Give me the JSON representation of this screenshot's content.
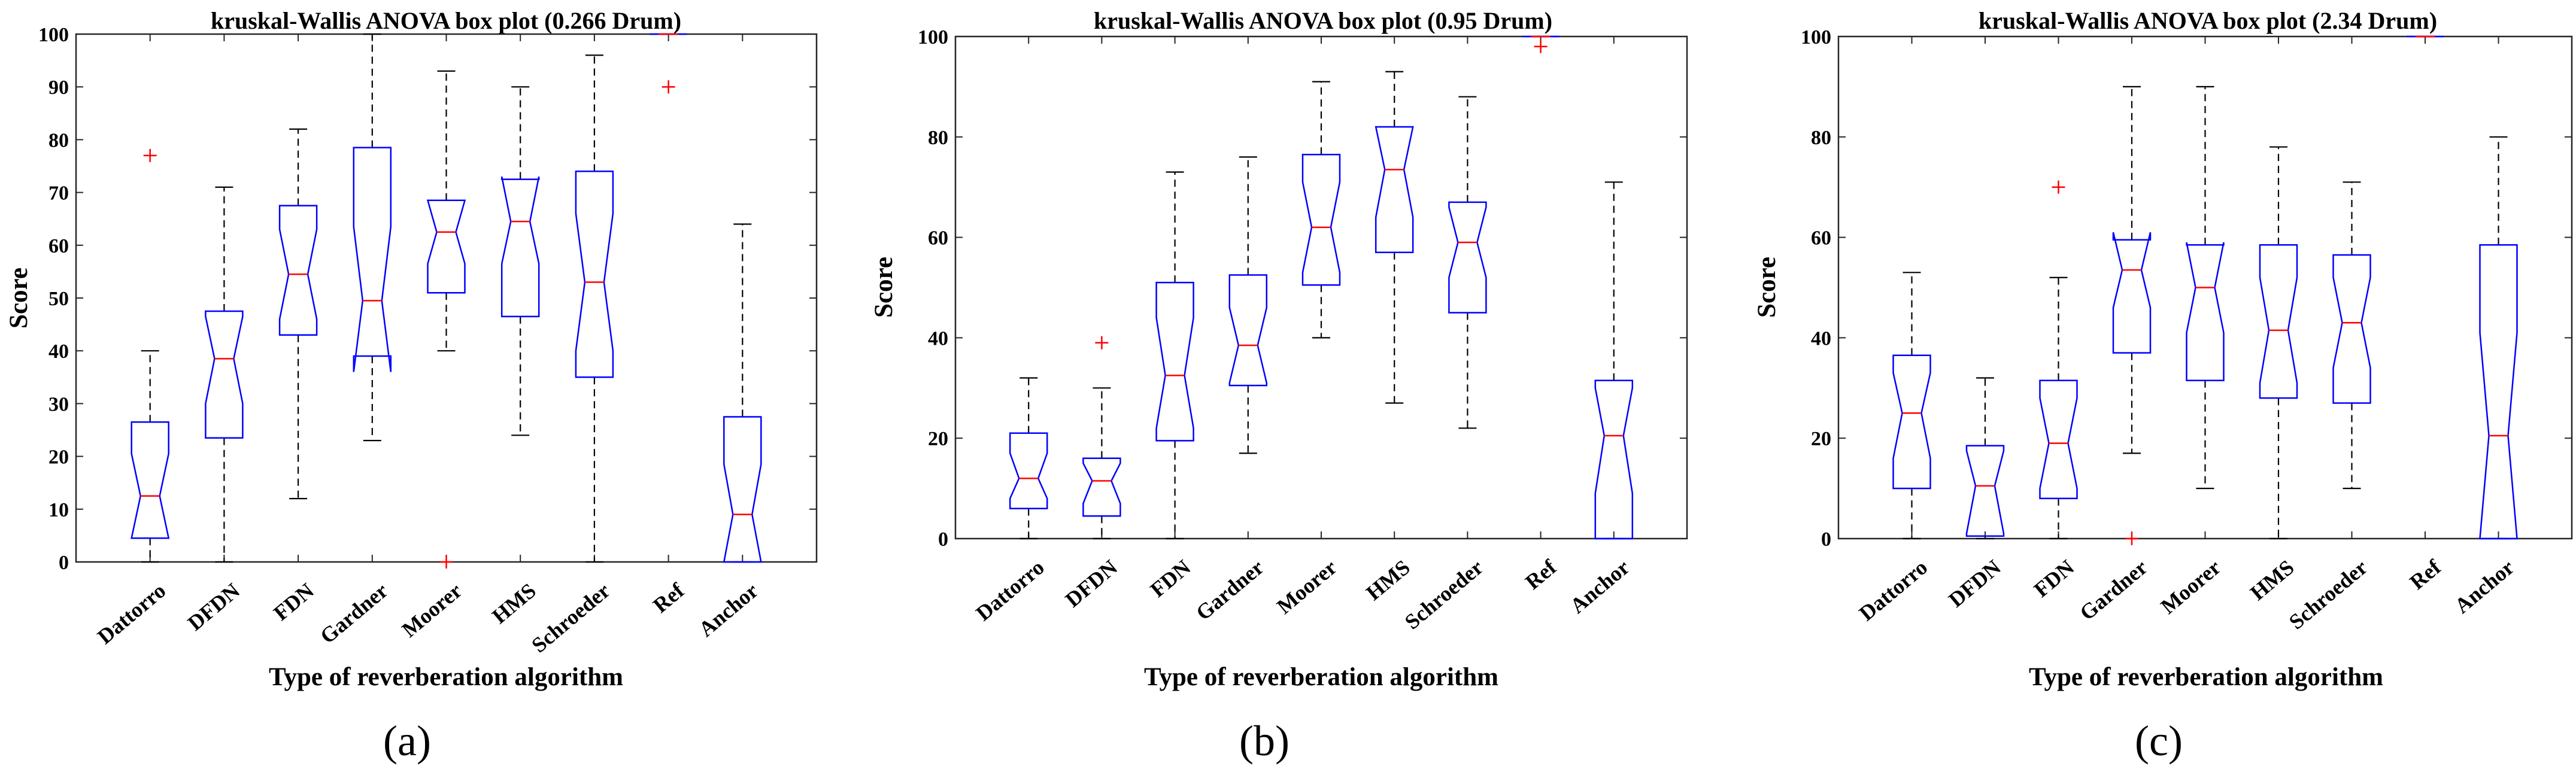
{
  "chart_data": [
    {
      "type": "boxplot",
      "title": "kruskal-Wallis ANOVA box plot (0.266 Drum)",
      "xlabel": "Type of reverberation algorithm",
      "ylabel": "Score",
      "ylim": [
        0,
        100
      ],
      "yticks": [
        0,
        10,
        20,
        30,
        40,
        50,
        60,
        70,
        80,
        90,
        100
      ],
      "ytick_labels": [
        "0",
        "10",
        "20",
        "30",
        "40",
        "50",
        "60",
        "70",
        "80",
        "90",
        "100"
      ],
      "subfigure_label": "(a)",
      "categories": [
        "Dattorro",
        "DFDN",
        "FDN",
        "Gardner",
        "Moorer",
        "HMS",
        "Schroeder",
        "Ref",
        "Anchor"
      ],
      "boxes": [
        {
          "q1": 4.5,
          "median": 12.5,
          "q3": 26.5,
          "whisker_low": 0,
          "whisker_high": 40,
          "notch_low": 4.5,
          "notch_high": 20.5,
          "outliers": [
            77
          ]
        },
        {
          "q1": 23.5,
          "median": 38.5,
          "q3": 47.5,
          "whisker_low": 0,
          "whisker_high": 71,
          "notch_low": 30,
          "notch_high": 46.5,
          "outliers": []
        },
        {
          "q1": 43,
          "median": 54.5,
          "q3": 67.5,
          "whisker_low": 12,
          "whisker_high": 82,
          "notch_low": 46,
          "notch_high": 63,
          "outliers": []
        },
        {
          "q1": 39,
          "median": 49.5,
          "q3": 78.5,
          "whisker_low": 23,
          "whisker_high": 100,
          "notch_low": 36,
          "notch_high": 63.5,
          "outliers": []
        },
        {
          "q1": 51,
          "median": 62.5,
          "q3": 68.5,
          "whisker_low": 40,
          "whisker_high": 93,
          "notch_low": 56.5,
          "notch_high": 68.5,
          "outliers": [
            0
          ]
        },
        {
          "q1": 46.5,
          "median": 64.5,
          "q3": 72.5,
          "whisker_low": 24,
          "whisker_high": 90,
          "notch_low": 56.5,
          "notch_high": 73
        },
        {
          "q1": 35,
          "median": 53,
          "q3": 74,
          "whisker_low": 0,
          "whisker_high": 96,
          "notch_low": 40,
          "notch_high": 66,
          "outliers": []
        },
        {
          "q1": 100,
          "median": 100,
          "q3": 100,
          "whisker_low": 100,
          "whisker_high": 100,
          "notch_low": 100,
          "notch_high": 100,
          "outliers": [
            90
          ]
        },
        {
          "q1": 0,
          "median": 9,
          "q3": 27.5,
          "whisker_low": 0,
          "whisker_high": 64,
          "notch_low": 0,
          "notch_high": 18.5,
          "outliers": []
        }
      ]
    },
    {
      "type": "boxplot",
      "title": "kruskal-Wallis ANOVA box plot (0.95 Drum)",
      "xlabel": "Type of reverberation algorithm",
      "ylabel": "Score",
      "ylim": [
        0,
        100
      ],
      "yticks": [
        0,
        20,
        40,
        60,
        80,
        100
      ],
      "ytick_labels": [
        "0",
        "20",
        "40",
        "60",
        "80",
        "100"
      ],
      "subfigure_label": "(b)",
      "categories": [
        "Dattorro",
        "DFDN",
        "FDN",
        "Gardner",
        "Moorer",
        "HMS",
        "Schroeder",
        "Ref",
        "Anchor"
      ],
      "boxes": [
        {
          "q1": 6,
          "median": 12,
          "q3": 21,
          "whisker_low": 0,
          "whisker_high": 32,
          "notch_low": 8,
          "notch_high": 17,
          "outliers": []
        },
        {
          "q1": 4.5,
          "median": 11.5,
          "q3": 16,
          "whisker_low": 0,
          "whisker_high": 30,
          "notch_low": 7,
          "notch_high": 15,
          "outliers": [
            39
          ]
        },
        {
          "q1": 19.5,
          "median": 32.5,
          "q3": 51,
          "whisker_low": 0,
          "whisker_high": 73,
          "notch_low": 22,
          "notch_high": 44,
          "outliers": []
        },
        {
          "q1": 30.5,
          "median": 38.5,
          "q3": 52.5,
          "whisker_low": 17,
          "whisker_high": 76,
          "notch_low": 31,
          "notch_high": 46,
          "outliers": []
        },
        {
          "q1": 50.5,
          "median": 62,
          "q3": 76.5,
          "whisker_low": 40,
          "whisker_high": 91,
          "notch_low": 53,
          "notch_high": 71,
          "outliers": []
        },
        {
          "q1": 57,
          "median": 73.5,
          "q3": 82,
          "whisker_low": 27,
          "whisker_high": 93,
          "notch_low": 64,
          "notch_high": 82,
          "outliers": []
        },
        {
          "q1": 45,
          "median": 59,
          "q3": 67,
          "whisker_low": 22,
          "whisker_high": 88,
          "notch_low": 52,
          "notch_high": 66,
          "outliers": []
        },
        {
          "q1": 100,
          "median": 100,
          "q3": 100,
          "whisker_low": 100,
          "whisker_high": 100,
          "notch_low": 100,
          "notch_high": 100,
          "outliers": [
            98
          ]
        },
        {
          "q1": 0,
          "median": 20.5,
          "q3": 31.5,
          "whisker_low": 0,
          "whisker_high": 71,
          "notch_low": 9,
          "notch_high": 30,
          "outliers": []
        }
      ]
    },
    {
      "type": "boxplot",
      "title": "kruskal-Wallis ANOVA box plot (2.34 Drum)",
      "xlabel": "Type of reverberation algorithm",
      "ylabel": "Score",
      "ylim": [
        0,
        100
      ],
      "yticks": [
        0,
        20,
        40,
        60,
        80,
        100
      ],
      "ytick_labels": [
        "0",
        "20",
        "40",
        "60",
        "80",
        "100"
      ],
      "subfigure_label": "(c)",
      "categories": [
        "Dattorro",
        "DFDN",
        "FDN",
        "Gardner",
        "Moorer",
        "HMS",
        "Schroeder",
        "Ref",
        "Anchor"
      ],
      "boxes": [
        {
          "q1": 10,
          "median": 25,
          "q3": 36.5,
          "whisker_low": 0,
          "whisker_high": 53,
          "notch_low": 16,
          "notch_high": 33,
          "outliers": []
        },
        {
          "q1": 0.5,
          "median": 10.5,
          "q3": 18.5,
          "whisker_low": 0,
          "whisker_high": 32,
          "notch_low": 1,
          "notch_high": 17.5,
          "outliers": []
        },
        {
          "q1": 8,
          "median": 19,
          "q3": 31.5,
          "whisker_low": 0,
          "whisker_high": 52,
          "notch_low": 10,
          "notch_high": 28,
          "outliers": [
            70
          ]
        },
        {
          "q1": 37,
          "median": 53.5,
          "q3": 59.5,
          "whisker_low": 17,
          "whisker_high": 90,
          "notch_low": 46,
          "notch_high": 61,
          "outliers": [
            0
          ]
        },
        {
          "q1": 31.5,
          "median": 50,
          "q3": 58.5,
          "whisker_low": 10,
          "whisker_high": 90,
          "notch_low": 41,
          "notch_high": 59,
          "outliers": []
        },
        {
          "q1": 28,
          "median": 41.5,
          "q3": 58.5,
          "whisker_low": 0,
          "whisker_high": 78,
          "notch_low": 31,
          "notch_high": 52,
          "outliers": []
        },
        {
          "q1": 27,
          "median": 43,
          "q3": 56.5,
          "whisker_low": 10,
          "whisker_high": 71,
          "notch_low": 34,
          "notch_high": 52,
          "outliers": []
        },
        {
          "q1": 100,
          "median": 100,
          "q3": 100,
          "whisker_low": 100,
          "whisker_high": 100,
          "notch_low": 100,
          "notch_high": 100,
          "outliers": []
        },
        {
          "q1": 0,
          "median": 20.5,
          "q3": 58.5,
          "whisker_low": 0,
          "whisker_high": 80,
          "notch_low": 0,
          "notch_high": 41,
          "outliers": []
        }
      ]
    }
  ],
  "colors": {
    "box": "#0000ff",
    "median": "#ff0000",
    "outlier": "#ff0000",
    "whisker": "#000000",
    "axis": "#262626"
  }
}
